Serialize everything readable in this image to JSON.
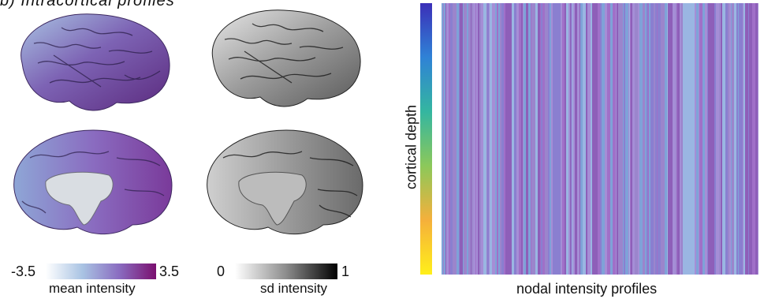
{
  "panel": {
    "title": "b) Intracortical profiles"
  },
  "brains": {
    "mean": {
      "lateral": "mean-intensity-lateral-view",
      "medial": "mean-intensity-medial-view"
    },
    "sd": {
      "lateral": "sd-intensity-lateral-view",
      "medial": "sd-intensity-medial-view"
    }
  },
  "colorbars": {
    "mean": {
      "min": "-3.5",
      "max": "3.5",
      "label": "mean intensity",
      "colors": [
        "#ffffff",
        "#a9c3e3",
        "#8a6cc0",
        "#7a0f6f"
      ]
    },
    "sd": {
      "min": "0",
      "max": "1",
      "label": "sd intensity",
      "colors": [
        "#ffffff",
        "#8c8c8c",
        "#000000"
      ]
    }
  },
  "heatmap": {
    "ylabel": "cortical depth",
    "xlabel": "nodal intensity profiles",
    "depth_colors": [
      "#3b2fb8",
      "#2f82d6",
      "#34b6a0",
      "#8cc85a",
      "#f5b03b",
      "#ffef1a"
    ],
    "cell_colors": [
      "#8a7fd0",
      "#9b85cc",
      "#a58ed6",
      "#7fa2d8",
      "#9ab6e2",
      "#a070c8",
      "#8e5fb9"
    ]
  }
}
